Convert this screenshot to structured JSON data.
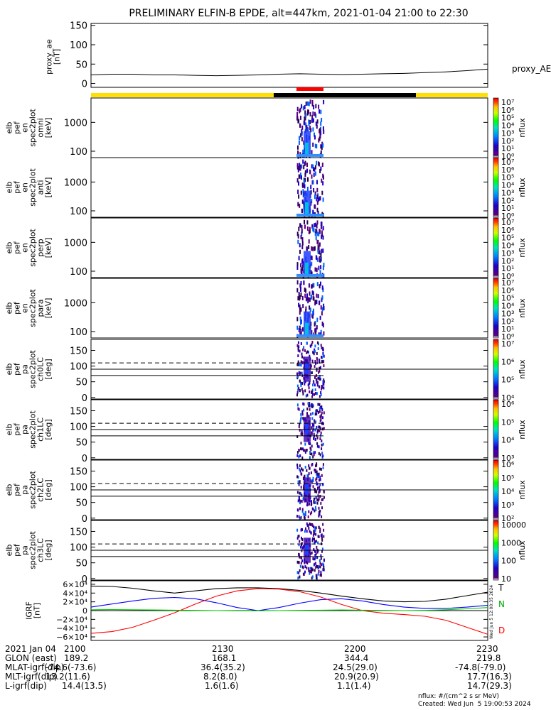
{
  "title": "PRELIMINARY ELFIN-B EPDE, alt=447km, 2021-01-04 21:00 to 22:30",
  "chart_data": {
    "type": "heatmap",
    "time_range": [
      "21:00",
      "22:30"
    ],
    "panels": [
      {
        "id": "proxy_ae",
        "type": "line",
        "ylabel_lines": [
          "proxy_ae",
          "[nT]"
        ],
        "yticks": [
          "150",
          "100",
          "50",
          "0"
        ],
        "ylim": [
          -10,
          155
        ],
        "series": [
          {
            "name": "proxy_AE",
            "values": [
              22,
              24,
              24,
              22,
              22,
              21,
              20,
              21,
              22,
              24,
              25,
              24,
              23,
              24,
              25,
              26,
              28,
              30,
              33,
              37
            ]
          }
        ]
      },
      {
        "id": "en_omni",
        "type": "spectrogram",
        "ylabel_lines": [
          "elb",
          "pef",
          "en",
          "spec2plot",
          "omni",
          "[keV]"
        ],
        "yscale": "log",
        "yticks": [
          "1000",
          "100"
        ],
        "ylim": [
          60,
          7000
        ],
        "colorbar_ticks": [
          "10⁷",
          "10⁶",
          "10⁵",
          "10⁴",
          "10³",
          "10²",
          "10¹",
          "10⁰"
        ],
        "colorbar_label": "nflux"
      },
      {
        "id": "en_anti",
        "type": "spectrogram",
        "ylabel_lines": [
          "elb",
          "pef",
          "en",
          "spec2plot",
          "anti",
          "[keV]"
        ],
        "yscale": "log",
        "yticks": [
          "1000",
          "100"
        ],
        "ylim": [
          60,
          7000
        ],
        "colorbar_ticks": [
          "10⁷",
          "10⁶",
          "10⁵",
          "10⁴",
          "10³",
          "10²",
          "10¹",
          "10⁰"
        ],
        "colorbar_label": "nflux"
      },
      {
        "id": "en_perp",
        "type": "spectrogram",
        "ylabel_lines": [
          "elb",
          "pef",
          "en",
          "spec2plot",
          "perp",
          "[keV]"
        ],
        "yscale": "log",
        "yticks": [
          "1000",
          "100"
        ],
        "ylim": [
          60,
          7000
        ],
        "colorbar_ticks": [
          "10⁷",
          "10⁶",
          "10⁵",
          "10⁴",
          "10³",
          "10²",
          "10¹",
          "10⁰"
        ],
        "colorbar_label": "nflux"
      },
      {
        "id": "en_para",
        "type": "spectrogram",
        "ylabel_lines": [
          "elb",
          "pef",
          "en",
          "spec2plot",
          "para",
          "[keV]"
        ],
        "yscale": "log",
        "yticks": [
          "1000",
          "100"
        ],
        "ylim": [
          60,
          7000
        ],
        "colorbar_ticks": [
          "10⁷",
          "10⁶",
          "10⁵",
          "10⁴",
          "10³",
          "10²",
          "10¹",
          "10⁰"
        ],
        "colorbar_label": "nflux"
      },
      {
        "id": "pa_ch0",
        "type": "spectrogram",
        "ylabel_lines": [
          "elb",
          "pef",
          "pa",
          "spec2plot",
          "ch0LC",
          "[deg]"
        ],
        "yticks": [
          "150",
          "100",
          "50",
          "0"
        ],
        "ylim": [
          -5,
          185
        ],
        "colorbar_ticks": [
          "10⁷",
          "10⁶",
          "10⁵",
          "10⁴"
        ],
        "colorbar_label": "nflux"
      },
      {
        "id": "pa_ch1",
        "type": "spectrogram",
        "ylabel_lines": [
          "elb",
          "pef",
          "pa",
          "spec2plot",
          "ch1LC",
          "[deg]"
        ],
        "yticks": [
          "150",
          "100",
          "50",
          "0"
        ],
        "ylim": [
          -5,
          185
        ],
        "colorbar_ticks": [
          "10⁶",
          "10⁵",
          "10⁴",
          "10³"
        ],
        "colorbar_label": "nflux"
      },
      {
        "id": "pa_ch2",
        "type": "spectrogram",
        "ylabel_lines": [
          "elb",
          "pef",
          "pa",
          "spec2plot",
          "ch2LC",
          "[deg]"
        ],
        "yticks": [
          "150",
          "100",
          "50",
          "0"
        ],
        "ylim": [
          -5,
          185
        ],
        "colorbar_ticks": [
          "10⁶",
          "10⁵",
          "10⁴",
          "10³",
          "10²"
        ],
        "colorbar_label": "nflux"
      },
      {
        "id": "pa_ch3",
        "type": "spectrogram",
        "ylabel_lines": [
          "elb",
          "pef",
          "pa",
          "spec2plot",
          "ch3LC",
          "[deg]"
        ],
        "yticks": [
          "150",
          "100",
          "50",
          "0"
        ],
        "ylim": [
          -5,
          185
        ],
        "colorbar_ticks": [
          "10000",
          "1000",
          "100",
          "10"
        ],
        "colorbar_label": "nflux"
      },
      {
        "id": "igrf",
        "type": "line",
        "ylabel_lines": [
          "IGRF",
          "[nT]"
        ],
        "yticks": [
          "6×10⁴",
          "4×10⁴",
          "2×10⁴",
          "0",
          "−2×10⁴",
          "−4×10⁴",
          "−6×10⁴"
        ],
        "ylim": [
          -68000,
          68000
        ],
        "side_label": "Wed Jun  5 12:00:35 2024",
        "series": [
          {
            "name": "T",
            "color": "#000000",
            "values": [
              56000,
              55000,
              51000,
              45000,
              40000,
              45000,
              50000,
              52000,
              52000,
              50000,
              46000,
              40000,
              33000,
              27000,
              22000,
              20000,
              21000,
              26000,
              34000,
              42000
            ]
          },
          {
            "name": "N",
            "color": "#0000ff",
            "values": [
              8000,
              15000,
              22000,
              28000,
              30000,
              27000,
              18000,
              7000,
              0,
              7000,
              17000,
              25000,
              27000,
              22000,
              14000,
              8000,
              5000,
              5000,
              8000,
              12000
            ]
          },
          {
            "name": "D",
            "color": "#ff0000",
            "values": [
              -52000,
              -48000,
              -38000,
              -22000,
              -5000,
              15000,
              33000,
              45000,
              50000,
              49000,
              43000,
              31000,
              14000,
              0,
              -6000,
              -9000,
              -13000,
              -22000,
              -38000,
              -54000
            ]
          },
          {
            "name": "",
            "color": "#00cc00",
            "values": [
              2000,
              2500,
              2000,
              1500,
              1000,
              500,
              0,
              -500,
              -500,
              0,
              500,
              1000,
              1500,
              1000,
              500,
              0,
              500,
              2000,
              4000,
              7000
            ]
          }
        ]
      }
    ]
  },
  "footer": {
    "rows": [
      {
        "label": "2021 Jan 04",
        "values": [
          "2100",
          "2130",
          "2200",
          "2230"
        ]
      },
      {
        "label": "GLON (east)",
        "values": [
          "189.2",
          "168.1",
          "344.4",
          "219.8"
        ]
      },
      {
        "label": "MLAT-igrf(dip)",
        "values": [
          "-74.6(-73.6)",
          "36.4(35.2)",
          "24.5(29.0)",
          "-74.8(-79.0)"
        ]
      },
      {
        "label": "MLT-igrf(dip)",
        "values": [
          "13.2(11.6)",
          "8.2(8.0)",
          "20.9(20.9)",
          "17.7(16.3)"
        ]
      },
      {
        "label": "L-igrf(dip)",
        "values": [
          "14.4(13.5)",
          "1.6(1.6)",
          "1.1(1.4)",
          "14.7(29.3)"
        ]
      }
    ],
    "units": "nflux: #/(cm^2 s sr MeV)",
    "created": "Created: Wed Jun  5 19:00:53 2024"
  }
}
